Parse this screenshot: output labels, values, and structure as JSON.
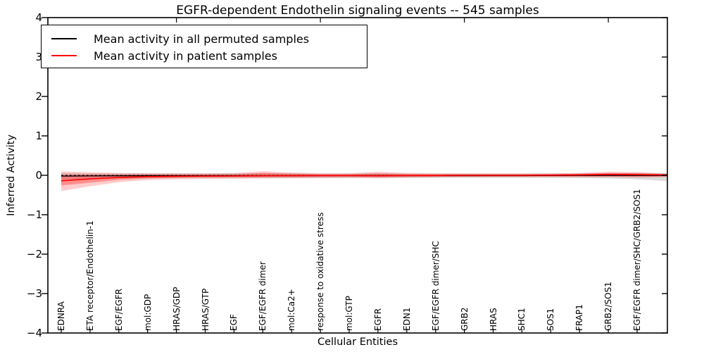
{
  "figure": {
    "title": "EGFR-dependent Endothelin signaling events -- 545 samples",
    "xlabel": "Cellular Entities",
    "ylabel": "Inferred Activity"
  },
  "legend": {
    "items": [
      {
        "label": "Mean activity in all permuted samples",
        "color": "#000000"
      },
      {
        "label": "Mean activity in patient samples",
        "color": "#ff0000"
      }
    ]
  },
  "chart_data": {
    "type": "line",
    "title": "EGFR-dependent Endothelin signaling events -- 545 samples",
    "xlabel": "Cellular Entities",
    "ylabel": "Inferred Activity",
    "ylim": [
      -4,
      4
    ],
    "grid": false,
    "legend_position": "upper left",
    "y_tick_labels": [
      "4",
      "3",
      "2",
      "1",
      "0",
      "−1",
      "−2",
      "−3",
      "−4"
    ],
    "y_tick_values": [
      4,
      3,
      2,
      1,
      0,
      -1,
      -2,
      -3,
      -4
    ],
    "top_tick_positions": [
      4,
      9,
      14,
      19
    ],
    "categories": [
      "EDNRA",
      "ETA receptor/Endothelin-1",
      "EGF/EGFR",
      "mol:GDP",
      "HRAS/GDP",
      "HRAS/GTP",
      "EGF",
      "EGF/EGFR dimer",
      "mol:Ca2+",
      "response to oxidative stress",
      "mol:GTP",
      "EGFR",
      "EDN1",
      "EGF/EGFR dimer/SHC",
      "GRB2",
      "HRAS",
      "SHC1",
      "SOS1",
      "FRAP1",
      "GRB2/SOS1",
      "EGF/EGFR dimer/SHC/GRB2/SOS1"
    ],
    "x_positions": [
      0,
      1,
      2,
      3,
      4,
      5,
      6,
      7,
      8,
      9,
      10,
      11,
      12,
      13,
      14,
      15,
      16,
      17,
      18,
      19,
      20,
      21.05
    ],
    "zero_line": {
      "y": 0,
      "style": "dotted",
      "color": "#000000"
    },
    "series": [
      {
        "name": "Mean activity in all permuted samples",
        "color": "#000000",
        "style": "solid",
        "values": [
          -0.02,
          -0.015,
          -0.012,
          -0.01,
          -0.01,
          -0.01,
          -0.01,
          -0.01,
          -0.01,
          -0.008,
          -0.008,
          -0.008,
          -0.008,
          -0.008,
          -0.008,
          -0.008,
          -0.008,
          -0.006,
          -0.005,
          -0.005,
          -0.005,
          -0.005
        ]
      },
      {
        "name": "Mean activity in patient samples",
        "color": "#ff0000",
        "style": "solid",
        "values": [
          -0.14,
          -0.09,
          -0.055,
          -0.035,
          -0.025,
          -0.02,
          -0.018,
          -0.012,
          -0.01,
          -0.006,
          -0.005,
          -0.012,
          -0.006,
          -0.003,
          0,
          0,
          0,
          0.004,
          0.01,
          0.022,
          0.018,
          0.01
        ]
      }
    ],
    "bands": [
      {
        "name": "permuted-samples-range",
        "color": "#000000",
        "opacity": 0.14,
        "high": [
          0.06,
          0.05,
          0.05,
          0.05,
          0.048,
          0.048,
          0.048,
          0.05,
          0.048,
          0.046,
          0.046,
          0.046,
          0.045,
          0.045,
          0.045,
          0.045,
          0.045,
          0.047,
          0.05,
          0.055,
          0.06,
          0.06
        ],
        "low": [
          -0.1,
          -0.09,
          -0.082,
          -0.078,
          -0.074,
          -0.072,
          -0.07,
          -0.07,
          -0.068,
          -0.066,
          -0.065,
          -0.066,
          -0.064,
          -0.062,
          -0.06,
          -0.06,
          -0.06,
          -0.064,
          -0.07,
          -0.08,
          -0.1,
          -0.15
        ]
      },
      {
        "name": "patient-samples-range-outer",
        "color": "#ff0000",
        "opacity": 0.2,
        "high": [
          0.1,
          0.075,
          0.06,
          0.052,
          0.05,
          0.05,
          0.055,
          0.105,
          0.07,
          0.05,
          0.05,
          0.09,
          0.06,
          0.05,
          0.048,
          0.046,
          0.046,
          0.05,
          0.06,
          0.09,
          0.08,
          0.04
        ],
        "low": [
          -0.4,
          -0.28,
          -0.175,
          -0.12,
          -0.1,
          -0.092,
          -0.086,
          -0.08,
          -0.075,
          -0.07,
          -0.066,
          -0.072,
          -0.062,
          -0.056,
          -0.052,
          -0.05,
          -0.05,
          -0.05,
          -0.05,
          -0.05,
          -0.06,
          -0.05
        ]
      },
      {
        "name": "patient-samples-range-inner",
        "color": "#ff0000",
        "opacity": 0.3,
        "high": [
          0.015,
          0.015,
          0.018,
          0.02,
          0.02,
          0.02,
          0.025,
          0.06,
          0.04,
          0.025,
          0.025,
          0.05,
          0.03,
          0.025,
          0.024,
          0.024,
          0.024,
          0.028,
          0.038,
          0.058,
          0.05,
          0.028
        ],
        "low": [
          -0.26,
          -0.185,
          -0.115,
          -0.078,
          -0.062,
          -0.055,
          -0.05,
          -0.046,
          -0.042,
          -0.04,
          -0.038,
          -0.044,
          -0.038,
          -0.034,
          -0.032,
          -0.03,
          -0.03,
          -0.03,
          -0.03,
          -0.032,
          -0.036,
          -0.03
        ]
      }
    ]
  }
}
